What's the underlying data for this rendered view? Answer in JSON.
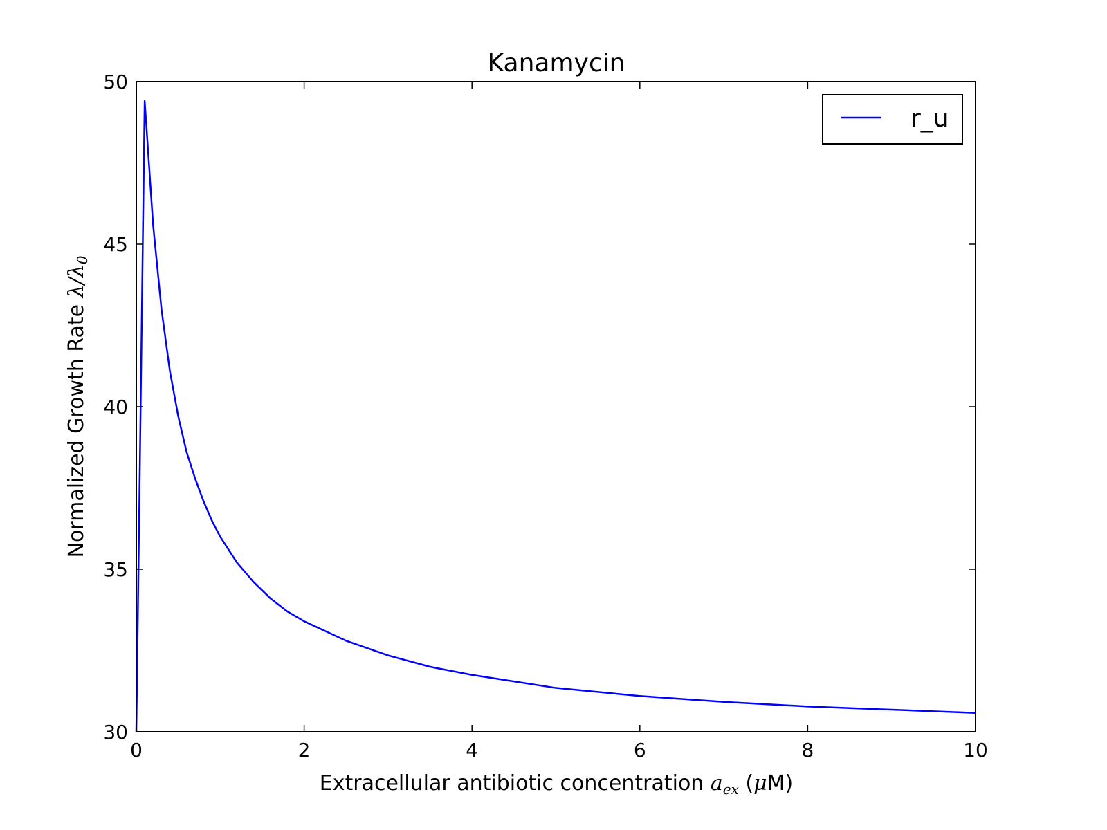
{
  "chart_data": {
    "type": "line",
    "title": "Kanamycin",
    "xlabel_text": "Extracellular antibiotic concentration ",
    "xlabel_math_main": "a",
    "xlabel_math_sub": "ex",
    "xlabel_unit_open": " (",
    "xlabel_unit_mu": "μ",
    "xlabel_unit_close": "M)",
    "ylabel_text": "Normalized Growth Rate ",
    "ylabel_math_num": "λ",
    "ylabel_math_slash": "/",
    "ylabel_math_den": "λ",
    "ylabel_math_den_sub": "0",
    "xlim": [
      0,
      10
    ],
    "ylim": [
      30,
      50
    ],
    "x_ticks": [
      0,
      2,
      4,
      6,
      8,
      10
    ],
    "y_ticks": [
      30,
      35,
      40,
      45,
      50
    ],
    "x_tick_labels": [
      "0",
      "2",
      "4",
      "6",
      "8",
      "10"
    ],
    "y_tick_labels": [
      "30",
      "35",
      "40",
      "45",
      "50"
    ],
    "grid": false,
    "legend_position": "top-right",
    "series": [
      {
        "name": "r_u",
        "color": "#0000ff",
        "x": [
          0,
          0.1,
          0.2,
          0.3,
          0.4,
          0.5,
          0.6,
          0.7,
          0.8,
          0.9,
          1.0,
          1.2,
          1.4,
          1.6,
          1.8,
          2.0,
          2.5,
          3.0,
          3.5,
          4.0,
          5.0,
          6.0,
          7.0,
          8.0,
          9.0,
          10.0
        ],
        "y": [
          30.0,
          49.4,
          45.6,
          43.0,
          41.1,
          39.7,
          38.6,
          37.8,
          37.1,
          36.5,
          36.0,
          35.2,
          34.6,
          34.1,
          33.7,
          33.4,
          32.8,
          32.35,
          32.0,
          31.75,
          31.35,
          31.1,
          30.92,
          30.78,
          30.68,
          30.58
        ]
      }
    ]
  }
}
